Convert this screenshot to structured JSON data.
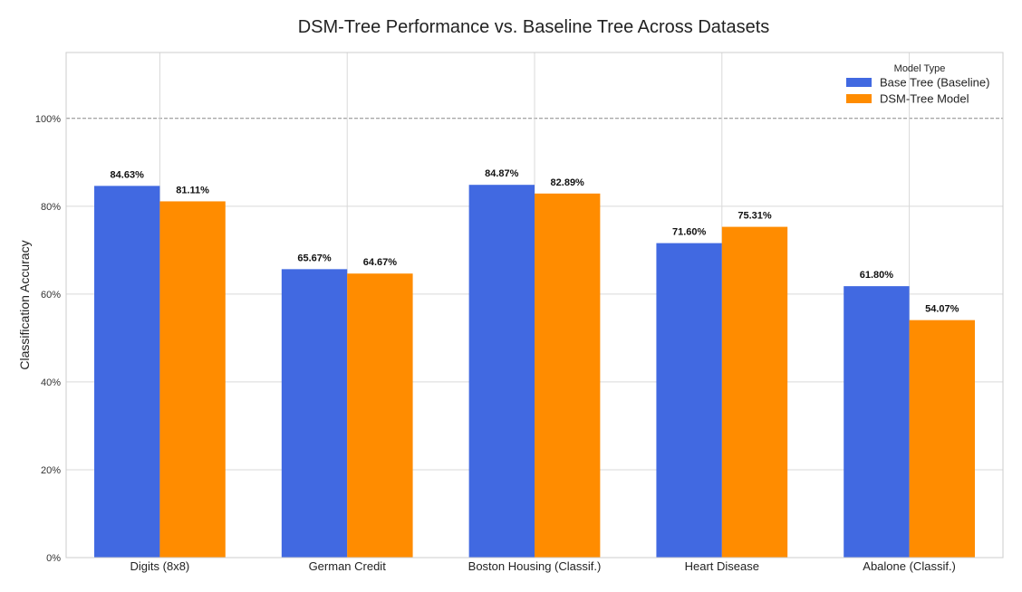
{
  "chart_data": {
    "type": "bar",
    "title": "DSM-Tree Performance vs. Baseline Tree Across Datasets",
    "xlabel": "",
    "ylabel": "Classification Accuracy",
    "categories": [
      "Digits (8x8)",
      "German Credit",
      "Boston Housing (Classif.)",
      "Heart Disease",
      "Abalone (Classif.)"
    ],
    "series": [
      {
        "name": "Base Tree (Baseline)",
        "color": "#4169e1",
        "values": [
          84.63,
          65.67,
          84.87,
          71.6,
          61.8
        ],
        "labels": [
          "84.63%",
          "65.67%",
          "84.87%",
          "71.60%",
          "61.80%"
        ]
      },
      {
        "name": "DSM-Tree Model",
        "color": "#ff8c00",
        "values": [
          81.11,
          64.67,
          82.89,
          75.31,
          54.07
        ],
        "labels": [
          "81.11%",
          "64.67%",
          "82.89%",
          "75.31%",
          "54.07%"
        ]
      }
    ],
    "ylim": [
      0,
      115
    ],
    "yticks": [
      0,
      20,
      40,
      60,
      80,
      100
    ],
    "ytick_labels": [
      "0%",
      "20%",
      "40%",
      "60%",
      "80%",
      "100%"
    ],
    "reference_line": 100,
    "grid": true,
    "legend": {
      "title": "Model Type",
      "placement": "top-right"
    }
  }
}
